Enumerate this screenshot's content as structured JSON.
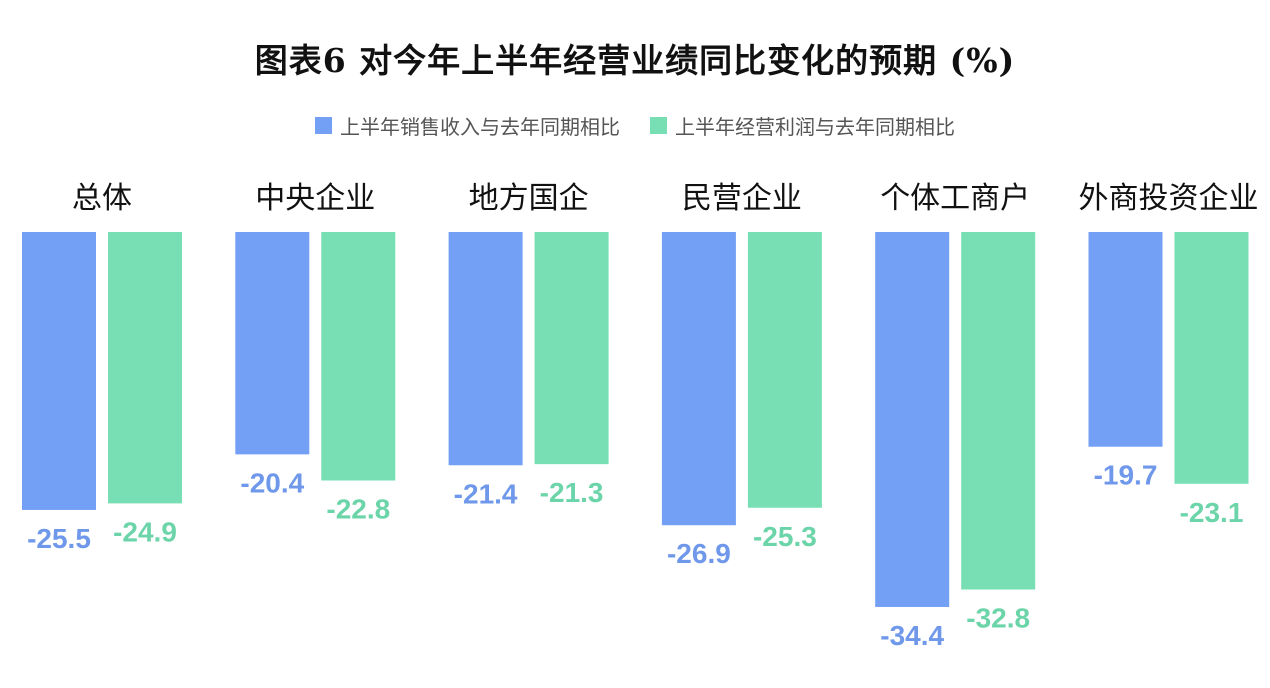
{
  "title": "图表6  对今年上半年经营业绩同比变化的预期 (%)",
  "chart_data": {
    "type": "bar",
    "categories": [
      "总体",
      "中央企业",
      "地方国企",
      "民营企业",
      "个体工商户",
      "外商投资企业"
    ],
    "series": [
      {
        "name": "上半年销售收入与去年同期相比",
        "color": "#739ff5",
        "values": [
          -25.5,
          -20.4,
          -21.4,
          -26.9,
          -34.4,
          -19.7
        ]
      },
      {
        "name": "上半年经营利润与去年同期相比",
        "color": "#78dfb4",
        "values": [
          -24.9,
          -22.8,
          -21.3,
          -25.3,
          -32.8,
          -23.1
        ]
      }
    ],
    "ylim": [
      -36,
      0
    ],
    "grid": false,
    "legend_position": "top-center",
    "xlabel": "",
    "ylabel": ""
  }
}
